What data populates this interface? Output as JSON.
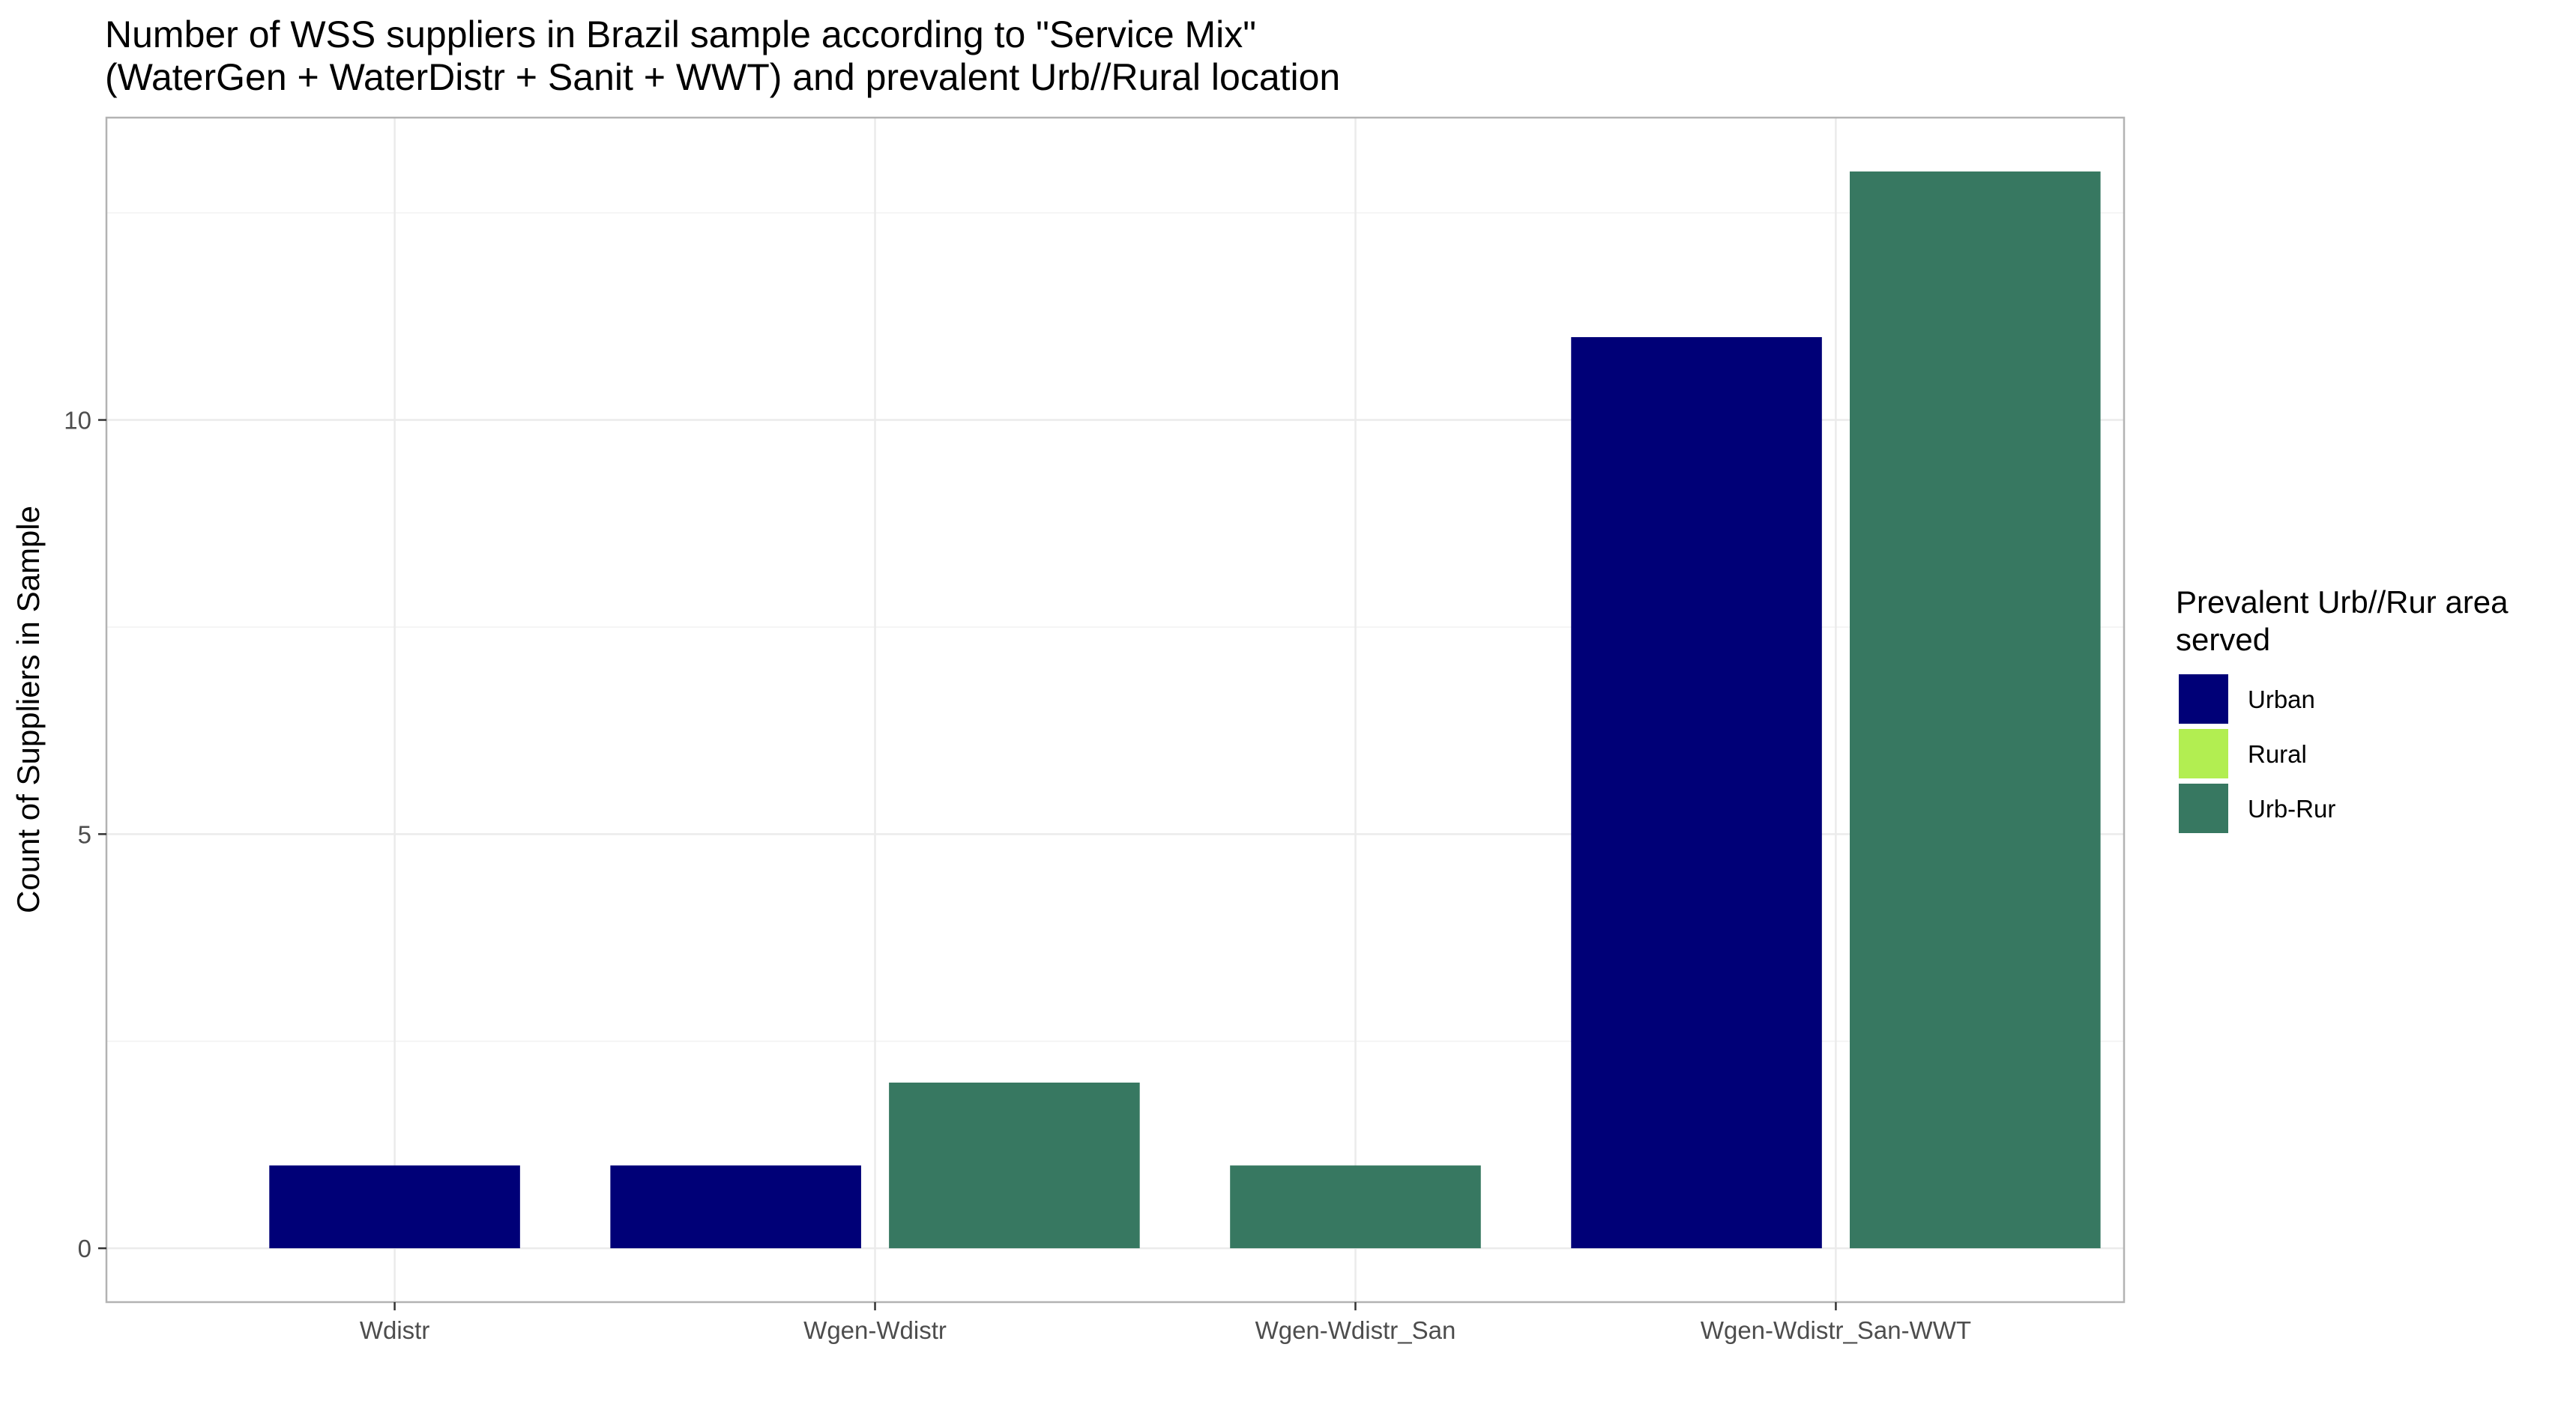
{
  "chart_data": {
    "type": "bar",
    "title_lines": [
      "Number of WSS suppliers in Brazil sample according to \"Service Mix\"",
      "(WaterGen + WaterDistr + Sanit + WWT) and prevalent Urb//Rural location"
    ],
    "xlabel": "",
    "ylabel": "Count of Suppliers in Sample",
    "categories": [
      "Wdistr",
      "Wgen-Wdistr",
      "Wgen-Wdistr_San",
      "Wgen-Wdistr_San-WWT"
    ],
    "series": [
      {
        "name": "Urban",
        "color": "#000077",
        "values": [
          1,
          1,
          null,
          11
        ]
      },
      {
        "name": "Rural",
        "color": "#B2EE51",
        "values": [
          null,
          null,
          null,
          null
        ]
      },
      {
        "name": "Urb-Rur",
        "color": "#377861",
        "values": [
          null,
          2,
          1,
          13
        ]
      }
    ],
    "yticks": [
      0,
      5,
      10
    ],
    "ylim": [
      -0.65,
      13.65
    ],
    "grid": true,
    "legend": {
      "title_lines": [
        "Prevalent Urb//Rur area",
        "served"
      ],
      "placement": "right"
    }
  }
}
